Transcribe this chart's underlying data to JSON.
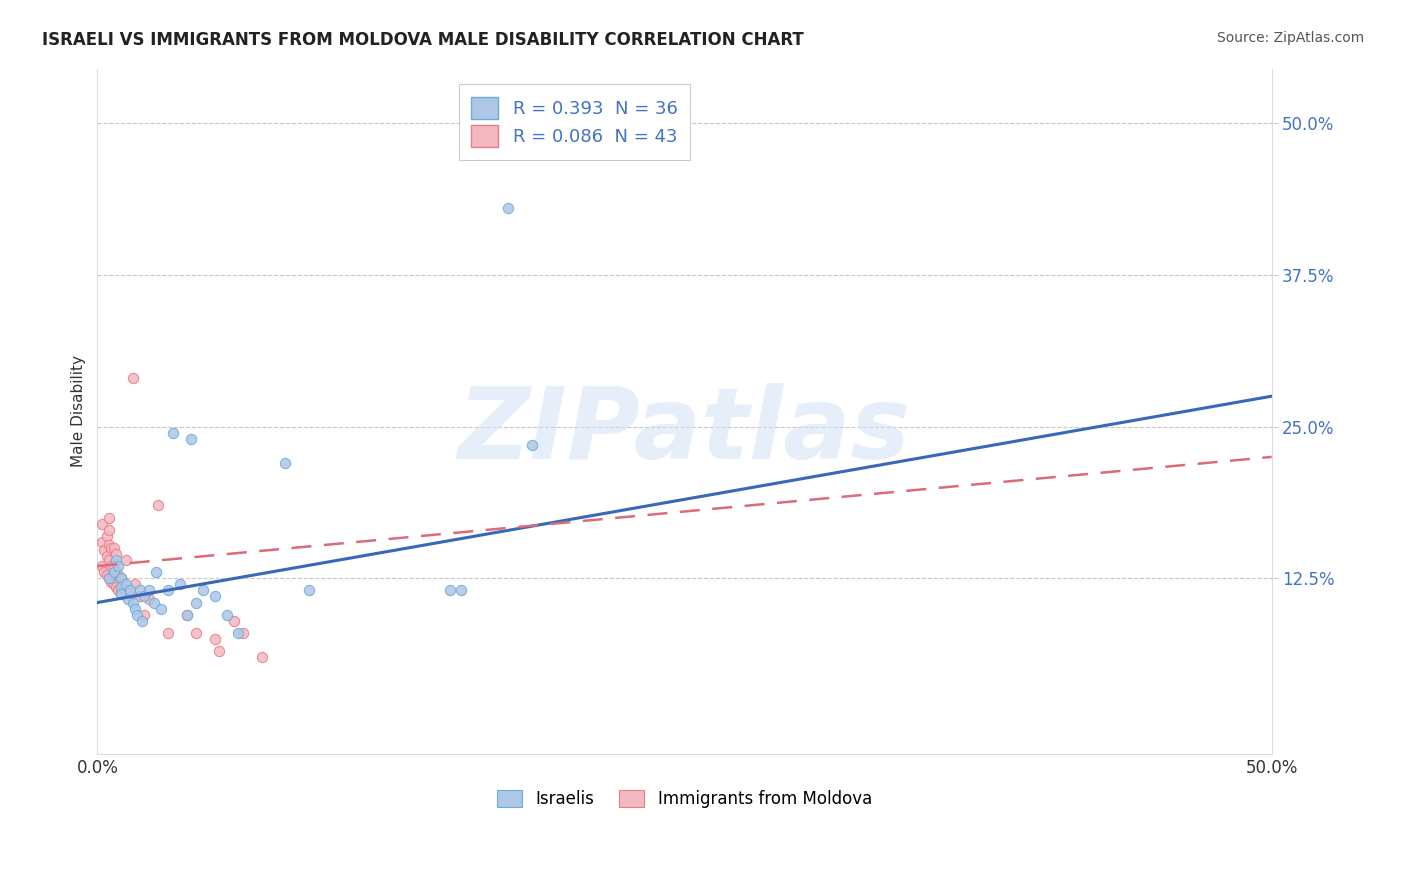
{
  "title": "ISRAELI VS IMMIGRANTS FROM MOLDOVA MALE DISABILITY CORRELATION CHART",
  "source": "Source: ZipAtlas.com",
  "ylabel": "Male Disability",
  "xlim": [
    0.0,
    0.5
  ],
  "ylim": [
    -0.02,
    0.545
  ],
  "xticks": [
    0.0,
    0.5
  ],
  "xticklabels": [
    "0.0%",
    "50.0%"
  ],
  "ytick_positions": [
    0.125,
    0.25,
    0.375,
    0.5
  ],
  "ytick_labels": [
    "12.5%",
    "25.0%",
    "37.5%",
    "50.0%"
  ],
  "watermark_text": "ZIPatlas",
  "legend_r1": "R = 0.393  N = 36",
  "legend_r2": "R = 0.086  N = 43",
  "israeli_color": "#aec6e8",
  "moldova_color": "#f4b8c1",
  "israeli_edge": "#6aaed6",
  "moldova_edge": "#e87d8a",
  "line_israeli_color": "#3a68b8",
  "line_moldova_color": "#d96b7a",
  "israeli_x": [
    0.005,
    0.007,
    0.008,
    0.009,
    0.01,
    0.01,
    0.01,
    0.012,
    0.013,
    0.014,
    0.015,
    0.016,
    0.017,
    0.018,
    0.019,
    0.02,
    0.022,
    0.024,
    0.025,
    0.027,
    0.03,
    0.032,
    0.035,
    0.038,
    0.04,
    0.042,
    0.045,
    0.05,
    0.055,
    0.06,
    0.08,
    0.09,
    0.15,
    0.155,
    0.175,
    0.185
  ],
  "israeli_y": [
    0.125,
    0.13,
    0.14,
    0.135,
    0.125,
    0.118,
    0.112,
    0.12,
    0.108,
    0.115,
    0.105,
    0.1,
    0.095,
    0.115,
    0.09,
    0.11,
    0.115,
    0.105,
    0.13,
    0.1,
    0.115,
    0.245,
    0.12,
    0.095,
    0.24,
    0.105,
    0.115,
    0.11,
    0.095,
    0.08,
    0.22,
    0.115,
    0.115,
    0.115,
    0.43,
    0.235
  ],
  "moldova_x": [
    0.002,
    0.002,
    0.002,
    0.003,
    0.003,
    0.004,
    0.004,
    0.004,
    0.005,
    0.005,
    0.005,
    0.005,
    0.005,
    0.006,
    0.006,
    0.006,
    0.007,
    0.007,
    0.007,
    0.008,
    0.008,
    0.008,
    0.009,
    0.009,
    0.01,
    0.01,
    0.011,
    0.012,
    0.013,
    0.015,
    0.016,
    0.018,
    0.02,
    0.022,
    0.026,
    0.03,
    0.038,
    0.042,
    0.05,
    0.052,
    0.058,
    0.062,
    0.07
  ],
  "moldova_y": [
    0.135,
    0.155,
    0.17,
    0.13,
    0.148,
    0.128,
    0.143,
    0.16,
    0.125,
    0.14,
    0.152,
    0.165,
    0.175,
    0.122,
    0.135,
    0.15,
    0.12,
    0.135,
    0.15,
    0.118,
    0.13,
    0.145,
    0.115,
    0.128,
    0.113,
    0.125,
    0.12,
    0.14,
    0.115,
    0.29,
    0.12,
    0.11,
    0.095,
    0.108,
    0.185,
    0.08,
    0.095,
    0.08,
    0.075,
    0.065,
    0.09,
    0.08,
    0.06
  ],
  "israeli_line_x": [
    0.0,
    0.5
  ],
  "israeli_line_y": [
    0.105,
    0.275
  ],
  "moldova_line_x": [
    0.0,
    0.5
  ],
  "moldova_line_y": [
    0.135,
    0.225
  ],
  "marker_size": 55,
  "grid_color": "#c8c8c8",
  "background_color": "#ffffff",
  "tick_color": "#4472c4",
  "legend_text_color": "#4472c4"
}
